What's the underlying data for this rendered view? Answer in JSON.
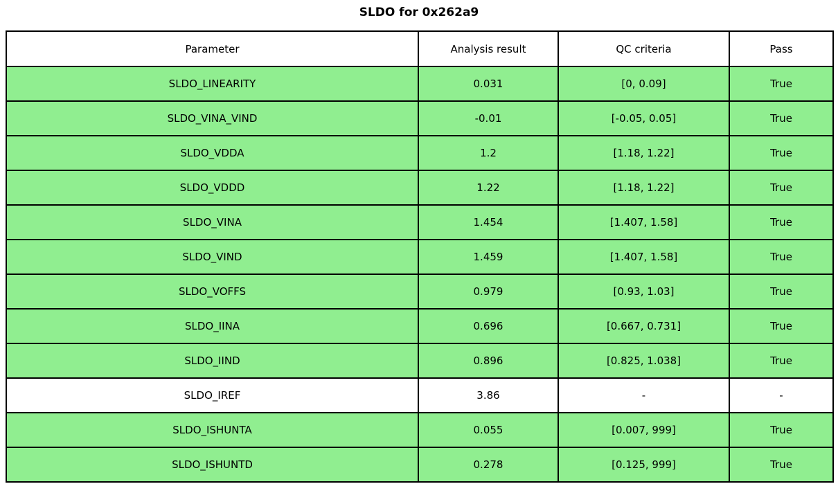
{
  "title": "SLDO for 0x262a9",
  "colors": {
    "pass_row_bg": "#90ee90",
    "default_row_bg": "#ffffff",
    "border": "#000000"
  },
  "chart_data": {
    "type": "table",
    "title": "SLDO for 0x262a9",
    "columns": [
      "Parameter",
      "Analysis result",
      "QC criteria",
      "Pass"
    ],
    "rows": [
      {
        "parameter": "SLDO_LINEARITY",
        "analysis_result": "0.031",
        "qc_criteria": "[0, 0.09]",
        "pass": "True",
        "highlighted": true
      },
      {
        "parameter": "SLDO_VINA_VIND",
        "analysis_result": "-0.01",
        "qc_criteria": "[-0.05, 0.05]",
        "pass": "True",
        "highlighted": true
      },
      {
        "parameter": "SLDO_VDDA",
        "analysis_result": "1.2",
        "qc_criteria": "[1.18, 1.22]",
        "pass": "True",
        "highlighted": true
      },
      {
        "parameter": "SLDO_VDDD",
        "analysis_result": "1.22",
        "qc_criteria": "[1.18, 1.22]",
        "pass": "True",
        "highlighted": true
      },
      {
        "parameter": "SLDO_VINA",
        "analysis_result": "1.454",
        "qc_criteria": "[1.407, 1.58]",
        "pass": "True",
        "highlighted": true
      },
      {
        "parameter": "SLDO_VIND",
        "analysis_result": "1.459",
        "qc_criteria": "[1.407, 1.58]",
        "pass": "True",
        "highlighted": true
      },
      {
        "parameter": "SLDO_VOFFS",
        "analysis_result": "0.979",
        "qc_criteria": "[0.93, 1.03]",
        "pass": "True",
        "highlighted": true
      },
      {
        "parameter": "SLDO_IINA",
        "analysis_result": "0.696",
        "qc_criteria": "[0.667, 0.731]",
        "pass": "True",
        "highlighted": true
      },
      {
        "parameter": "SLDO_IIND",
        "analysis_result": "0.896",
        "qc_criteria": "[0.825, 1.038]",
        "pass": "True",
        "highlighted": true
      },
      {
        "parameter": "SLDO_IREF",
        "analysis_result": "3.86",
        "qc_criteria": "-",
        "pass": "-",
        "highlighted": false
      },
      {
        "parameter": "SLDO_ISHUNTA",
        "analysis_result": "0.055",
        "qc_criteria": "[0.007, 999]",
        "pass": "True",
        "highlighted": true
      },
      {
        "parameter": "SLDO_ISHUNTD",
        "analysis_result": "0.278",
        "qc_criteria": "[0.125, 999]",
        "pass": "True",
        "highlighted": true
      }
    ]
  }
}
